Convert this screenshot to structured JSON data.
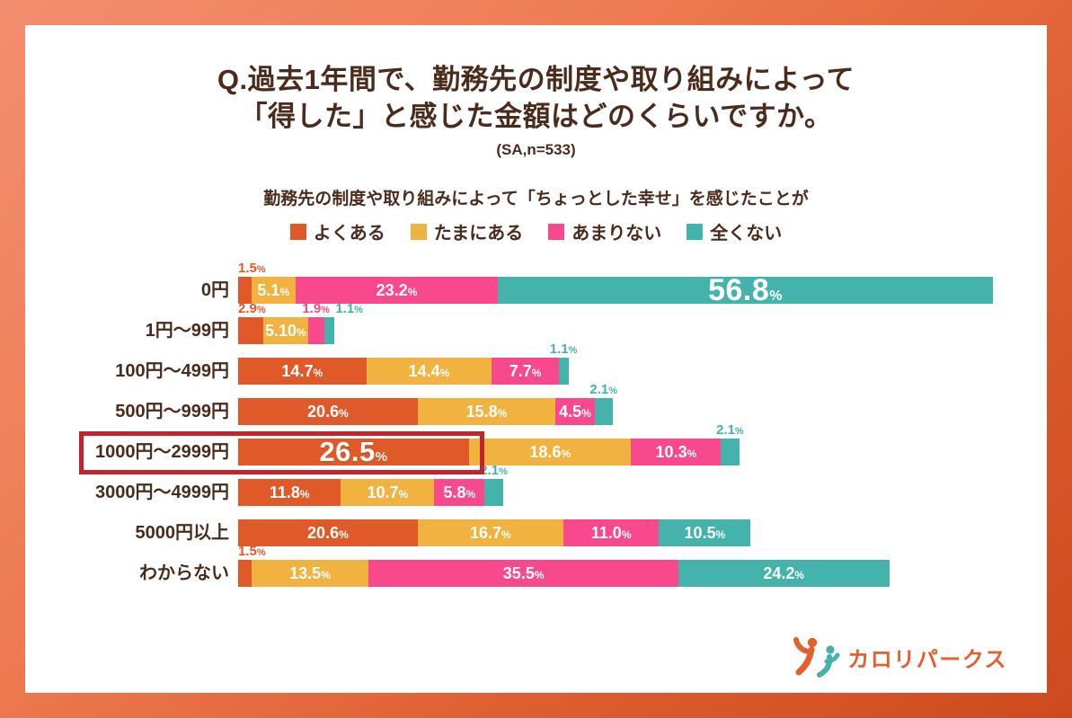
{
  "title": {
    "line1": "Q.過去1年間で、勤務先の制度や取り組みによって",
    "line2": "「得した」と感じた金額はどのくらいですか。",
    "note": "(SA,n=533)"
  },
  "subtitle": "勤務先の制度や取り組みによって「ちょっとした幸せ」を感じたことが",
  "colors": {
    "text_brown": "#4A2B1C",
    "highlight_red": "#C2242E",
    "frame_orange_light": "#F38E70",
    "frame_orange_dark": "#CE4A1E",
    "white": "#FFFFFF"
  },
  "chart_data": {
    "type": "bar",
    "stacked": true,
    "orientation": "horizontal",
    "unit": "%",
    "xlim": [
      0,
      100
    ],
    "grid": false,
    "legend_position": "top",
    "series": [
      "よくある",
      "たまにある",
      "あまりない",
      "全くない"
    ],
    "series_colors": [
      "#E05A29",
      "#F1B240",
      "#F7498C",
      "#44B3AB"
    ],
    "categories": [
      "0円",
      "1円〜99円",
      "100円〜499円",
      "500円〜999円",
      "1000円〜2999円",
      "3000円〜4999円",
      "5000円以上",
      "わからない"
    ],
    "rows": [
      {
        "category": "0円",
        "values": [
          1.5,
          5.1,
          23.2,
          56.8
        ],
        "value_labels": [
          "1.5",
          "5.1",
          "23.2",
          "56.8"
        ],
        "label_pos": [
          "above",
          "inside",
          "inside",
          "inside-big"
        ],
        "highlight": false
      },
      {
        "category": "1円〜99円",
        "values": [
          2.9,
          5.1,
          1.9,
          1.1
        ],
        "value_labels": [
          "2.9",
          "5.10",
          "1.9",
          "1.1"
        ],
        "label_pos": [
          "above",
          "inside",
          "above",
          "above"
        ],
        "highlight": false
      },
      {
        "category": "100円〜499円",
        "values": [
          14.7,
          14.4,
          7.7,
          1.1
        ],
        "value_labels": [
          "14.7",
          "14.4",
          "7.7",
          "1.1"
        ],
        "label_pos": [
          "inside",
          "inside",
          "inside",
          "above"
        ],
        "highlight": false
      },
      {
        "category": "500円〜999円",
        "values": [
          20.6,
          15.8,
          4.5,
          2.1
        ],
        "value_labels": [
          "20.6",
          "15.8",
          "4.5",
          "2.1"
        ],
        "label_pos": [
          "inside",
          "inside",
          "inside",
          "above"
        ],
        "highlight": false
      },
      {
        "category": "1000円〜2999円",
        "values": [
          26.5,
          18.6,
          10.3,
          2.1
        ],
        "value_labels": [
          "26.5",
          "18.6",
          "10.3",
          "2.1"
        ],
        "label_pos": [
          "inside-big-hl",
          "inside",
          "inside",
          "above"
        ],
        "highlight": true
      },
      {
        "category": "3000円〜4999円",
        "values": [
          11.8,
          10.7,
          5.8,
          2.1
        ],
        "value_labels": [
          "11.8",
          "10.7",
          "5.8",
          "2.1"
        ],
        "label_pos": [
          "inside",
          "inside",
          "inside",
          "above"
        ],
        "highlight": false
      },
      {
        "category": "5000円以上",
        "values": [
          20.6,
          16.7,
          11.0,
          10.5
        ],
        "value_labels": [
          "20.6",
          "16.7",
          "11.0",
          "10.5"
        ],
        "label_pos": [
          "inside",
          "inside",
          "inside",
          "inside"
        ],
        "highlight": false
      },
      {
        "category": "わからない",
        "values": [
          1.5,
          13.5,
          35.5,
          24.2
        ],
        "value_labels": [
          "1.5",
          "13.5",
          "35.5",
          "24.2"
        ],
        "label_pos": [
          "above",
          "inside",
          "inside",
          "inside"
        ],
        "highlight": false
      }
    ]
  },
  "logo": {
    "text": "カロリパークス",
    "color": "#E45F2B",
    "icon": "two-dancing-figures-icon"
  }
}
